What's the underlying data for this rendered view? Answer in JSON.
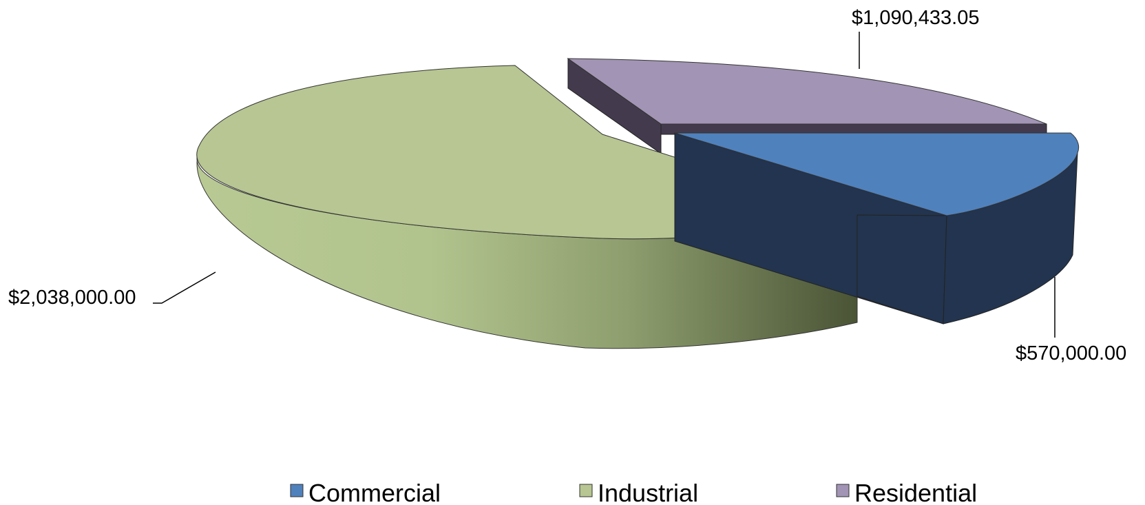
{
  "chart_data": {
    "type": "pie",
    "style": "3d-exploded",
    "title": "",
    "categories": [
      "Commercial",
      "Industrial",
      "Residential"
    ],
    "values": [
      570000.0,
      2038000.0,
      1090433.05
    ],
    "data_labels": [
      "$570,000.00",
      "$2,038,000.00",
      "$1,090,433.05"
    ],
    "colors": {
      "Commercial": "#4f81bd",
      "Industrial": "#b7c692",
      "Residential": "#a294b4"
    },
    "legend": {
      "position": "bottom",
      "entries": [
        "Commercial",
        "Industrial",
        "Residential"
      ]
    }
  }
}
